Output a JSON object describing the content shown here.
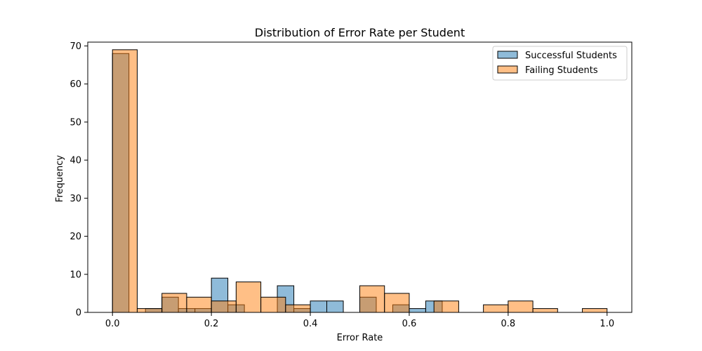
{
  "chart_data": {
    "type": "bar",
    "title": "Distribution of Error Rate per Student",
    "xlabel": "Error Rate",
    "ylabel": "Frequency",
    "xlim": [
      -0.05,
      1.05
    ],
    "ylim": [
      0,
      71
    ],
    "xticks": [
      0.0,
      0.2,
      0.4,
      0.6,
      0.8,
      1.0
    ],
    "xtick_labels": [
      "0.0",
      "0.2",
      "0.4",
      "0.6",
      "0.8",
      "1.0"
    ],
    "yticks": [
      0,
      10,
      20,
      30,
      40,
      50,
      60,
      70
    ],
    "ytick_labels": [
      "0",
      "10",
      "20",
      "30",
      "40",
      "50",
      "60",
      "70"
    ],
    "grid": false,
    "legend_position": "top-right",
    "series": [
      {
        "name": "Successful Students",
        "color": "#1f77b4",
        "alpha": 0.5,
        "bins": [
          {
            "x0": 0.0,
            "x1": 0.0333,
            "count": 68
          },
          {
            "x0": 0.0667,
            "x1": 0.1,
            "count": 1
          },
          {
            "x0": 0.1,
            "x1": 0.1333,
            "count": 4
          },
          {
            "x0": 0.1333,
            "x1": 0.1667,
            "count": 1
          },
          {
            "x0": 0.1667,
            "x1": 0.2,
            "count": 1
          },
          {
            "x0": 0.2,
            "x1": 0.2333,
            "count": 9
          },
          {
            "x0": 0.2333,
            "x1": 0.2667,
            "count": 2
          },
          {
            "x0": 0.3333,
            "x1": 0.3667,
            "count": 7
          },
          {
            "x0": 0.3667,
            "x1": 0.4,
            "count": 1
          },
          {
            "x0": 0.4,
            "x1": 0.4333,
            "count": 3
          },
          {
            "x0": 0.4333,
            "x1": 0.4667,
            "count": 3
          },
          {
            "x0": 0.5,
            "x1": 0.5333,
            "count": 4
          },
          {
            "x0": 0.5667,
            "x1": 0.6,
            "count": 2
          },
          {
            "x0": 0.6,
            "x1": 0.6333,
            "count": 1
          },
          {
            "x0": 0.6333,
            "x1": 0.6667,
            "count": 3
          }
        ]
      },
      {
        "name": "Failing Students",
        "color": "#ff7f0e",
        "alpha": 0.5,
        "bins": [
          {
            "x0": 0.0,
            "x1": 0.05,
            "count": 69
          },
          {
            "x0": 0.05,
            "x1": 0.1,
            "count": 1
          },
          {
            "x0": 0.1,
            "x1": 0.15,
            "count": 5
          },
          {
            "x0": 0.15,
            "x1": 0.2,
            "count": 4
          },
          {
            "x0": 0.2,
            "x1": 0.25,
            "count": 3
          },
          {
            "x0": 0.25,
            "x1": 0.3,
            "count": 8
          },
          {
            "x0": 0.3,
            "x1": 0.35,
            "count": 4
          },
          {
            "x0": 0.35,
            "x1": 0.4,
            "count": 2
          },
          {
            "x0": 0.5,
            "x1": 0.55,
            "count": 7
          },
          {
            "x0": 0.55,
            "x1": 0.6,
            "count": 5
          },
          {
            "x0": 0.65,
            "x1": 0.7,
            "count": 3
          },
          {
            "x0": 0.75,
            "x1": 0.8,
            "count": 2
          },
          {
            "x0": 0.8,
            "x1": 0.85,
            "count": 3
          },
          {
            "x0": 0.85,
            "x1": 0.9,
            "count": 1
          },
          {
            "x0": 0.95,
            "x1": 1.0,
            "count": 1
          }
        ]
      }
    ]
  }
}
